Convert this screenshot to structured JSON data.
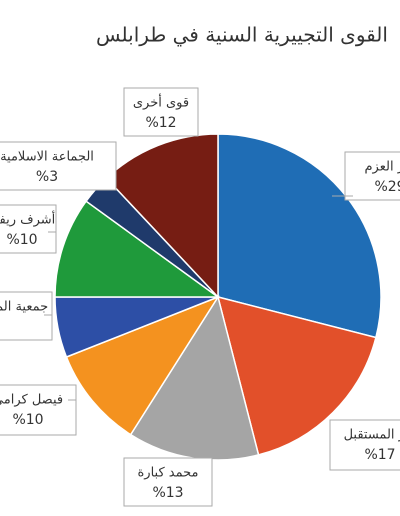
{
  "chart_data": {
    "type": "pie",
    "title": "القوى التجييرية السنية في طرابلس",
    "categories": [
      "تيار العزم",
      "تيار المستقبل",
      "محمد كبارة",
      "فيصل كرامي",
      "جمعية المشاريع",
      "أشرف ريفي",
      "الجماعة الاسلامية",
      "قوى أخرى"
    ],
    "values": [
      29,
      17,
      13,
      10,
      6,
      10,
      3,
      12
    ],
    "value_labels": [
      "%29",
      "%17",
      "%13",
      "%10",
      null,
      "%10",
      "%3",
      "%12"
    ],
    "colors": [
      "#1f6db5",
      "#e2502a",
      "#a5a5a5",
      "#f4921f",
      "#2d4fa6",
      "#1f9a3b",
      "#1f3a6b",
      "#761d13"
    ]
  }
}
